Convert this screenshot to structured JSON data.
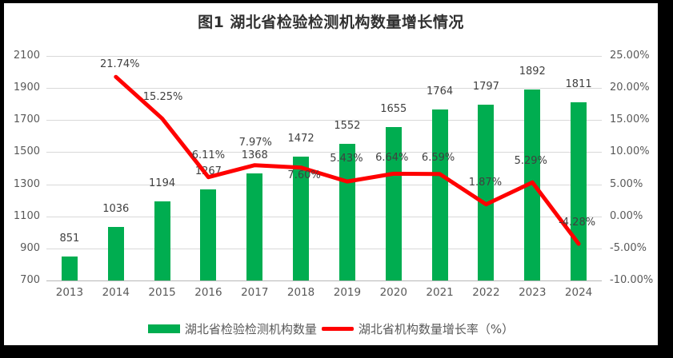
{
  "title": "图1 湖北省检验检测机构数量增长情况",
  "legend": {
    "items": [
      {
        "label": "湖北省检验检测机构数量",
        "swatch": "bar-swatch-icon",
        "color": "#00AD50"
      },
      {
        "label": "湖北省机构数量增长率（%）",
        "swatch": "line-swatch-icon",
        "color": "#FF0000"
      }
    ]
  },
  "chart_data": {
    "type": "combo-bar-line",
    "title": "图1 湖北省检验检测机构数量增长情况",
    "categories": [
      "2013",
      "2014",
      "2015",
      "2016",
      "2017",
      "2018",
      "2019",
      "2020",
      "2021",
      "2022",
      "2023",
      "2024"
    ],
    "series": [
      {
        "name": "湖北省检验检测机构数量",
        "type": "bar",
        "axis": "left",
        "color": "#00AD50",
        "values": [
          851,
          1036,
          1194,
          1267,
          1368,
          1472,
          1552,
          1655,
          1764,
          1797,
          1892,
          1811
        ],
        "labels": [
          "851",
          "1036",
          "1194",
          "1267",
          "1368",
          "1472",
          "1552",
          "1655",
          "1764",
          "1797",
          "1892",
          "1811"
        ]
      },
      {
        "name": "湖北省机构数量增长率（%）",
        "type": "line",
        "axis": "right",
        "color": "#FF0000",
        "values": [
          null,
          21.74,
          15.25,
          6.11,
          7.97,
          7.6,
          5.43,
          6.64,
          6.59,
          1.87,
          5.29,
          -4.28
        ],
        "labels": [
          null,
          "21.74%",
          "15.25%",
          "6.11%",
          "7.97%",
          "7.60%",
          "5.43%",
          "6.64%",
          "6.59%",
          "1.87%",
          "5.29%",
          "-4.28%"
        ]
      }
    ],
    "left_axis": {
      "min": 700,
      "max": 2100,
      "step": 200,
      "ticks": [
        "2100",
        "1900",
        "1700",
        "1500",
        "1300",
        "1100",
        "900",
        "700"
      ]
    },
    "right_axis": {
      "min": -10,
      "max": 25,
      "step": 5,
      "ticks": [
        "25.00%",
        "20.00%",
        "15.00%",
        "10.00%",
        "5.00%",
        "0.00%",
        "-5.00%",
        "-10.00%"
      ]
    },
    "grid": true,
    "legend_position": "bottom"
  },
  "colors": {
    "bar": "#00AD50",
    "line": "#FF0000",
    "data_label": "#404040",
    "axis_label": "#595959",
    "gridline": "#D9D9D9",
    "axis_line": "#B7B7B7",
    "background": "#FFFFFF",
    "frame": "#000000"
  }
}
